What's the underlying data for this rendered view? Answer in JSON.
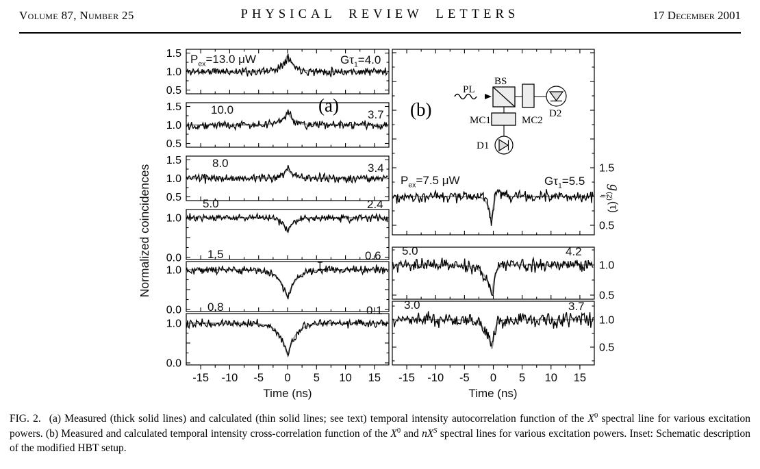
{
  "header": {
    "volume_number": "Volume 87, Number 25",
    "journal": "PHYSICAL REVIEW LETTERS",
    "date": "17 December 2001"
  },
  "figure": {
    "panel_a": {
      "tag": "(a)",
      "ylabel": "Normalized coincidences",
      "xlabel": "Time (ns)",
      "row1": {
        "p_pre": "P",
        "p_sub": "ex",
        "p_eq": "=13.0 μW",
        "g_pre": "Gτ",
        "g_sub": "1",
        "g_eq": "=4.0"
      },
      "rows": [
        {
          "left": "10.0",
          "right": "3.7"
        },
        {
          "left": "8.0",
          "right": "3.4"
        },
        {
          "left": "5.0",
          "right": "2.4"
        },
        {
          "left": "1.5",
          "right": "0.6"
        },
        {
          "left": "0.8",
          "right": "0.1"
        }
      ]
    },
    "panel_b": {
      "tag": "(b)",
      "xlabel": "Time (ns)",
      "ylabel_base": "g",
      "ylabel_sub": "ij",
      "ylabel_sup": "(2)",
      "ylabel_arg": "(τ)",
      "row1": {
        "p_pre": "P",
        "p_sub": "ex",
        "p_eq": "=7.5 μW",
        "g_pre": "Gτ",
        "g_sub": "1",
        "g_eq": "=5.5"
      },
      "rows": [
        {
          "left": "5.0",
          "right": "4.2"
        },
        {
          "left": "3.0",
          "right": "3.7"
        }
      ],
      "inset": {
        "pl": "PL",
        "bs": "BS",
        "mc1": "MC1",
        "mc2": "MC2",
        "d1": "D1",
        "d2": "D2"
      }
    }
  },
  "caption": {
    "fig_label": "FIG. 2.",
    "part1": "(a) Measured (thick solid lines) and calculated (thin solid lines; see text) temporal intensity autocorrelation function of the ",
    "x_base": "X",
    "x_sup": "0",
    "part2": " spectral line for various excitation powers. (b) Measured and calculated temporal intensity cross-correlation function of the ",
    "part3": " and ",
    "nxs_base": "nX",
    "nxs_sup": "S",
    "part4": " spectral lines for various excitation powers. Inset:  Schematic description of the modified HBT setup."
  },
  "chart_data": {
    "type": "line",
    "xlabel": "Time (ns)",
    "xlim": [
      -17.5,
      17.5
    ],
    "x_major_ticks": [
      -15,
      -10,
      -5,
      0,
      5,
      10,
      15
    ],
    "x_minor_step": 2.5,
    "colors": {
      "measured": "#000000",
      "calculated": "#a3a3a3"
    },
    "panels": [
      {
        "id": "a",
        "ylabel": "Normalized coincidences",
        "description": "Autocorrelation of the X0 spectral line",
        "traces": [
          {
            "power_uW": 13.0,
            "G_tau1": 4.0,
            "yticks": [
              1.5,
              1.0,
              0.5
            ],
            "baseline": 1.0,
            "feature": "peak",
            "value_at_zero": 1.45,
            "fit": {
              "kind": "peak",
              "A": 0.45,
              "w": 1.1,
              "t0": 0
            },
            "noise": 0.058,
            "seed": 11
          },
          {
            "power_uW": 10.0,
            "G_tau1": 3.7,
            "yticks": [
              1.5,
              1.0,
              0.5
            ],
            "baseline": 1.0,
            "feature": "peak",
            "value_at_zero": 1.35,
            "fit": {
              "kind": "peak",
              "A": 0.35,
              "w": 1.1,
              "t0": 0
            },
            "noise": 0.055,
            "seed": 22
          },
          {
            "power_uW": 8.0,
            "G_tau1": 3.4,
            "yticks": [
              1.5,
              1.0,
              0.5
            ],
            "baseline": 1.0,
            "feature": "peak",
            "value_at_zero": 1.26,
            "fit": {
              "kind": "peak",
              "A": 0.26,
              "w": 0.95,
              "t0": 0
            },
            "noise": 0.055,
            "seed": 33
          },
          {
            "power_uW": 5.0,
            "G_tau1": 2.4,
            "yticks": [
              1.0,
              0.0
            ],
            "baseline": 1.0,
            "feature": "dip",
            "value_at_zero": 0.62,
            "fit": {
              "kind": "dip",
              "A": 0.38,
              "w": 0.9,
              "t0": 0
            },
            "noise": 0.05,
            "seed": 44
          },
          {
            "power_uW": 1.5,
            "G_tau1": 0.6,
            "yticks": [
              1.0,
              0.0
            ],
            "baseline": 1.0,
            "feature": "dip",
            "value_at_zero": 0.28,
            "fit": {
              "kind": "dip",
              "A": 0.72,
              "w": 1.4,
              "t0": 0
            },
            "noise": 0.05,
            "seed": 55,
            "error_bar": {
              "t": 5.6,
              "value": 1.1,
              "half": 0.09
            }
          },
          {
            "power_uW": 0.8,
            "G_tau1": 0.1,
            "yticks": [
              1.0,
              0.0
            ],
            "baseline": 1.0,
            "feature": "dip",
            "value_at_zero": 0.18,
            "fit": {
              "kind": "dip",
              "A": 0.82,
              "w": 1.4,
              "t0": 0
            },
            "noise": 0.05,
            "seed": 66
          }
        ]
      },
      {
        "id": "b",
        "ylabel": "g_ij^(2)(τ)",
        "description": "Cross-correlation of the X0 and nXS spectral lines",
        "traces": [
          {
            "power_uW": 7.5,
            "G_tau1": 5.5,
            "yticks": [
              1.5,
              0.5
            ],
            "baseline": 1.0,
            "feature": "asymmetric-dip",
            "value_at_min": 0.52,
            "fit": {
              "kind": "dip_asym",
              "A": 0.48,
              "wl": 0.6,
              "wr": 0.55,
              "t0": -0.3,
              "bump": 0.17,
              "bump_t": 0.7,
              "bump_w": 0.9
            },
            "noise": 0.05,
            "seed": 77
          },
          {
            "power_uW": 5.0,
            "G_tau1": 4.2,
            "yticks": [
              1.0,
              0.5
            ],
            "baseline": 1.0,
            "feature": "asymmetric-dip",
            "value_at_min": 0.5,
            "fit": {
              "kind": "dip_asym",
              "A": 0.5,
              "wl": 1.3,
              "wr": 0.5,
              "t0": -0.2,
              "bump": 0,
              "bump_t": 0,
              "bump_w": 1
            },
            "noise": 0.055,
            "seed": 88
          },
          {
            "power_uW": 3.0,
            "G_tau1": 3.7,
            "yticks": [
              1.0,
              0.5
            ],
            "baseline": 1.0,
            "feature": "asymmetric-dip",
            "value_at_min": 0.45,
            "fit": {
              "kind": "dip_asym",
              "A": 0.55,
              "wl": 1.2,
              "wr": 0.45,
              "t0": -0.2,
              "bump": 0,
              "bump_t": 0,
              "bump_w": 1
            },
            "noise": 0.068,
            "seed": 99
          }
        ]
      }
    ]
  }
}
